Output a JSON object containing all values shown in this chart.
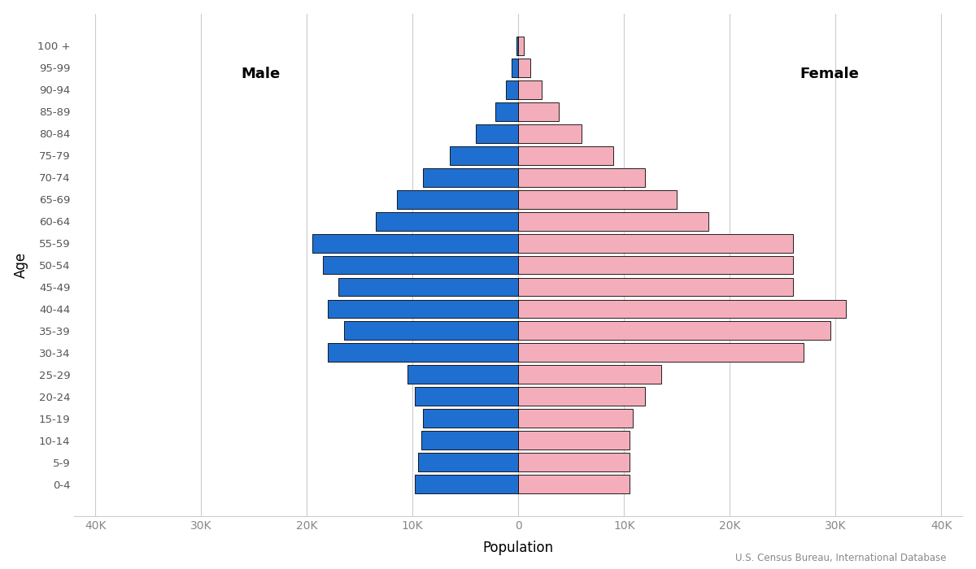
{
  "age_groups": [
    "0-4",
    "5-9",
    "10-14",
    "15-19",
    "20-24",
    "25-29",
    "30-34",
    "35-39",
    "40-44",
    "45-49",
    "50-54",
    "55-59",
    "60-64",
    "65-69",
    "70-74",
    "75-79",
    "80-84",
    "85-89",
    "90-94",
    "95-99",
    "100 +"
  ],
  "male": [
    9800,
    9500,
    9200,
    9000,
    9800,
    10500,
    18000,
    16500,
    18000,
    17000,
    18500,
    19500,
    13500,
    11500,
    9000,
    6500,
    4000,
    2200,
    1200,
    600,
    200
  ],
  "female": [
    10500,
    10500,
    10500,
    10800,
    12000,
    13500,
    27000,
    29500,
    31000,
    26000,
    26000,
    26000,
    18000,
    15000,
    12000,
    9000,
    6000,
    3800,
    2200,
    1100,
    500
  ],
  "male_color": "#1F6FD0",
  "female_color": "#F4AEBB",
  "bar_edgecolor": "#000000",
  "bar_linewidth": 0.6,
  "background_color": "#FFFFFF",
  "xlabel": "Population",
  "ylabel": "Age",
  "x_ticks": [
    -40000,
    -30000,
    -20000,
    -10000,
    0,
    10000,
    20000,
    30000,
    40000
  ],
  "x_tick_labels": [
    "40K",
    "30K",
    "20K",
    "10K",
    "0",
    "10K",
    "20K",
    "30K",
    "40K"
  ],
  "xlim": [
    -42000,
    42000
  ],
  "male_label": "Male",
  "female_label": "Female",
  "source_text": "U.S. Census Bureau, International Database",
  "grid_color": "#CCCCCC",
  "grid_linewidth": 0.8
}
